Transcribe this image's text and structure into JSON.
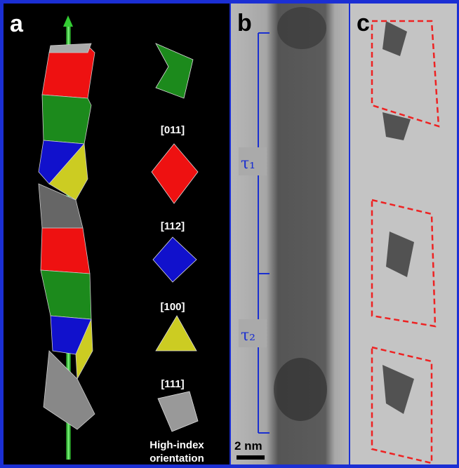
{
  "panels": [
    {
      "label": "a",
      "legend": [
        "[011]",
        "[112]",
        "[100]",
        "[111]",
        "High-index",
        "orientation"
      ]
    },
    {
      "label": "b",
      "annotations": [
        "τ₁",
        "τ₂"
      ],
      "scale_bar": "2 nm"
    },
    {
      "label": "c"
    }
  ]
}
